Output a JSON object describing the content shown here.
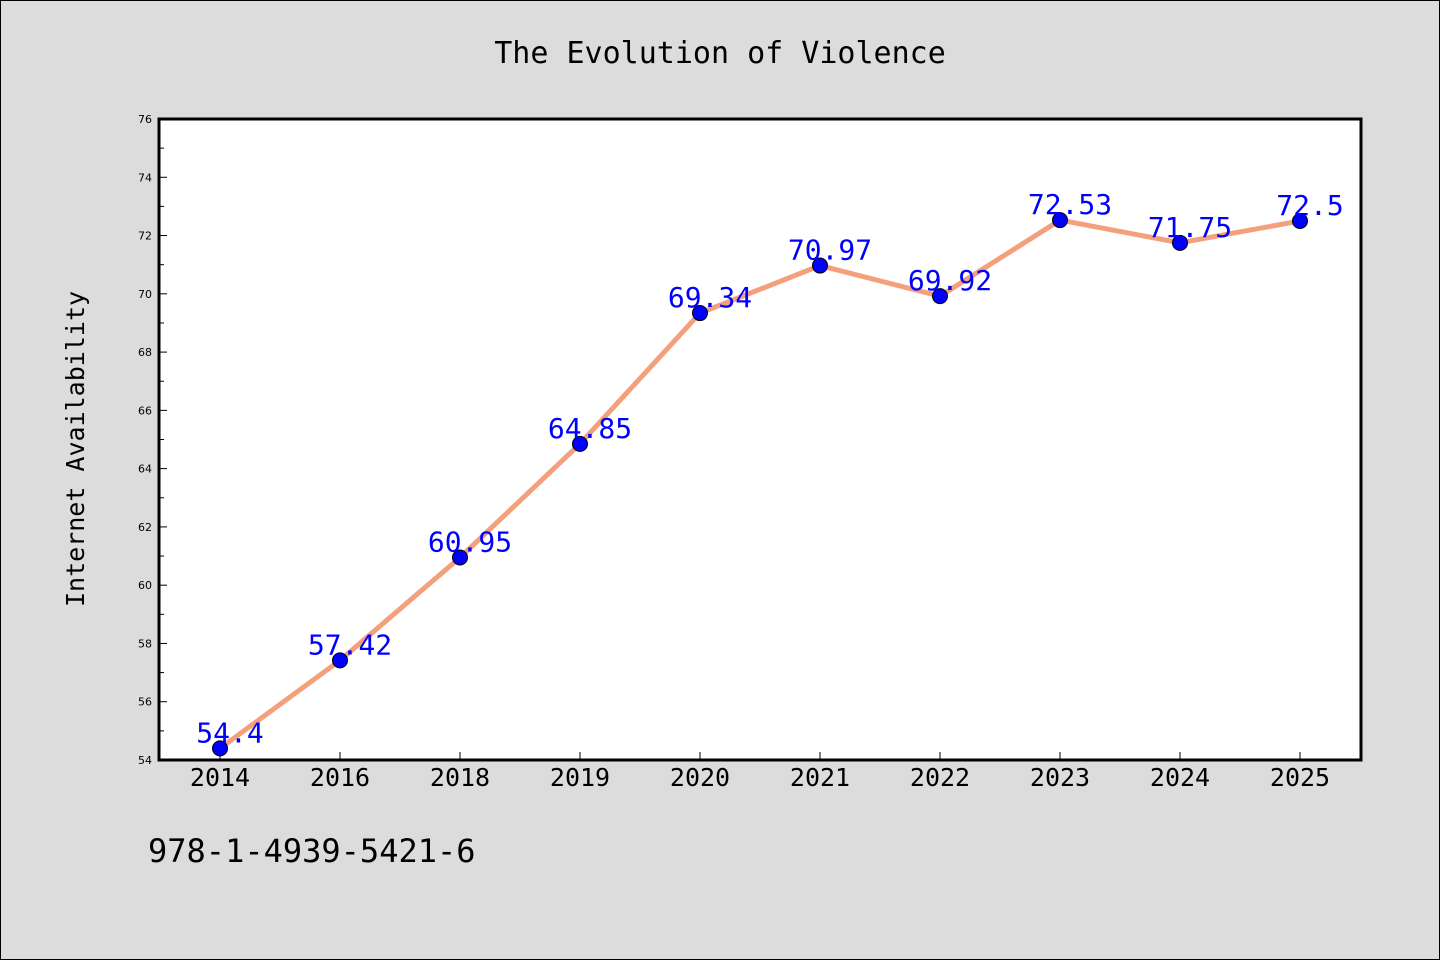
{
  "chart_data": {
    "type": "line",
    "title": "The Evolution of Violence",
    "xlabel": "",
    "ylabel": "Internet Availability",
    "categories": [
      "2014",
      "2016",
      "2018",
      "2019",
      "2020",
      "2021",
      "2022",
      "2023",
      "2024",
      "2025"
    ],
    "values": [
      54.4,
      57.42,
      60.95,
      64.85,
      69.34,
      70.97,
      69.92,
      72.53,
      71.75,
      72.5
    ],
    "value_labels": [
      "54.4",
      "57.42",
      "60.95",
      "64.85",
      "69.34",
      "70.97",
      "69.92",
      "72.53",
      "71.75",
      "72.5"
    ],
    "ylim": [
      54,
      76
    ],
    "yticks": [
      54,
      56,
      58,
      60,
      62,
      64,
      66,
      68,
      70,
      72,
      74,
      76
    ],
    "grid": false,
    "line_color": "#f4a07c",
    "marker_color": "#0000ff",
    "label_color": "#0000ff",
    "background_color": "#dcdcdc",
    "plot_background_color": "#ffffff"
  },
  "footer": {
    "isbn": "978-1-4939-5421-6"
  }
}
